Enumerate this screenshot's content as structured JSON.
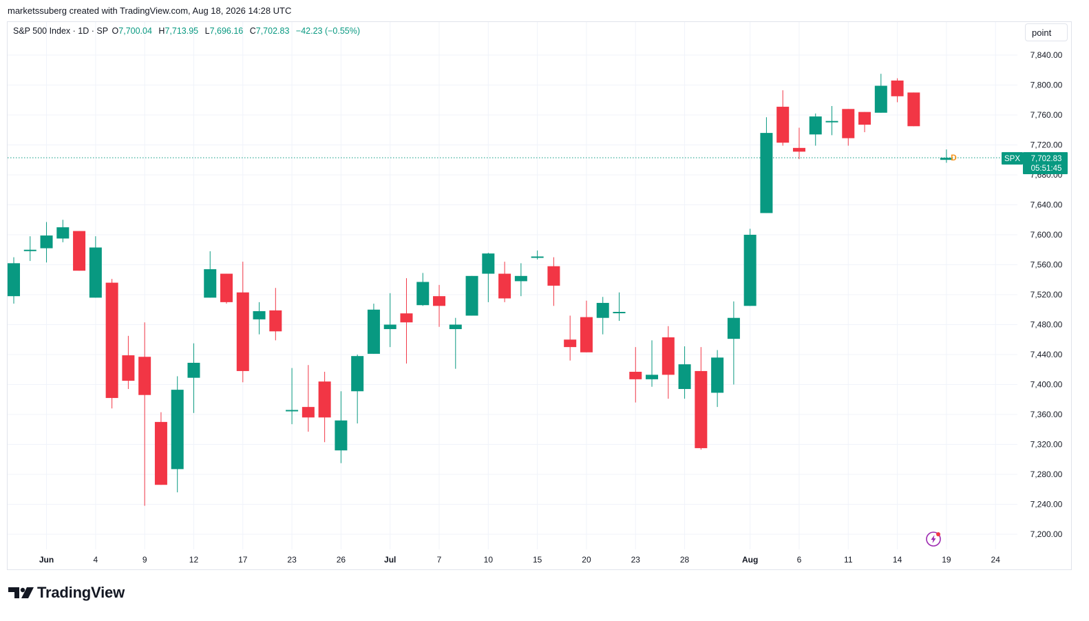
{
  "header": {
    "creator_line": "marketssuberg created with TradingView.com, Aug 18, 2026 14:28 UTC"
  },
  "legend": {
    "symbol": "S&P 500 Index · 1D · SP",
    "open_label": "O",
    "open": "7,700.04",
    "high_label": "H",
    "high": "7,713.95",
    "low_label": "L",
    "low": "7,696.16",
    "close_label": "C",
    "close": "7,702.83",
    "change": "−42.23 (−0.55%)"
  },
  "toolbar": {
    "unit_label": "point"
  },
  "price_badge": {
    "ticker": "SPX",
    "price": "7,702.83",
    "countdown": "05:51:45"
  },
  "dividend_marker": "D",
  "brand": {
    "name": "TradingView"
  },
  "colors": {
    "up": "#089981",
    "down": "#f23645",
    "grid": "#f0f3fa",
    "marker": "#f7931a",
    "text": "#131722"
  },
  "chart_data": {
    "type": "candlestick",
    "y_axis": {
      "min": 7200,
      "max": 7840,
      "ticks": [
        "7,200.00",
        "7,240.00",
        "7,280.00",
        "7,320.00",
        "7,360.00",
        "7,400.00",
        "7,440.00",
        "7,480.00",
        "7,520.00",
        "7,560.00",
        "7,600.00",
        "7,640.00",
        "7,680.00",
        "7,720.00",
        "7,760.00",
        "7,800.00",
        "7,840.00"
      ]
    },
    "x_axis": {
      "labels": [
        "Jun",
        "4",
        "9",
        "12",
        "17",
        "23",
        "26",
        "Jul",
        "7",
        "10",
        "15",
        "20",
        "23",
        "28",
        "Aug",
        "6",
        "11",
        "14",
        "19",
        "24"
      ]
    },
    "grid": true,
    "last_price_line": 7702.83,
    "candles": [
      {
        "o": 7518,
        "h": 7570,
        "l": 7508,
        "c": 7562
      },
      {
        "o": 7580,
        "h": 7598,
        "l": 7565,
        "c": 7580
      },
      {
        "o": 7582,
        "h": 7617,
        "l": 7563,
        "c": 7599
      },
      {
        "o": 7595,
        "h": 7620,
        "l": 7590,
        "c": 7610
      },
      {
        "o": 7605,
        "h": 7605,
        "l": 7552,
        "c": 7552
      },
      {
        "o": 7516,
        "h": 7598,
        "l": 7516,
        "c": 7583
      },
      {
        "o": 7536,
        "h": 7541,
        "l": 7368,
        "c": 7382
      },
      {
        "o": 7439,
        "h": 7465,
        "l": 7394,
        "c": 7405
      },
      {
        "o": 7437,
        "h": 7483,
        "l": 7238,
        "c": 7386
      },
      {
        "o": 7350,
        "h": 7363,
        "l": 7266,
        "c": 7266
      },
      {
        "o": 7287,
        "h": 7411,
        "l": 7256,
        "c": 7393
      },
      {
        "o": 7409,
        "h": 7455,
        "l": 7362,
        "c": 7429
      },
      {
        "o": 7516,
        "h": 7578,
        "l": 7516,
        "c": 7554
      },
      {
        "o": 7548,
        "h": 7548,
        "l": 7508,
        "c": 7510
      },
      {
        "o": 7523,
        "h": 7564,
        "l": 7403,
        "c": 7418
      },
      {
        "o": 7487,
        "h": 7510,
        "l": 7467,
        "c": 7498
      },
      {
        "o": 7499,
        "h": 7529,
        "l": 7459,
        "c": 7471
      },
      {
        "o": 7366,
        "h": 7422,
        "l": 7347,
        "c": 7366
      },
      {
        "o": 7370,
        "h": 7426,
        "l": 7337,
        "c": 7356
      },
      {
        "o": 7404,
        "h": 7417,
        "l": 7323,
        "c": 7356
      },
      {
        "o": 7312,
        "h": 7391,
        "l": 7295,
        "c": 7352
      },
      {
        "o": 7391,
        "h": 7440,
        "l": 7348,
        "c": 7438
      },
      {
        "o": 7441,
        "h": 7508,
        "l": 7441,
        "c": 7500
      },
      {
        "o": 7474,
        "h": 7522,
        "l": 7450,
        "c": 7480
      },
      {
        "o": 7495,
        "h": 7542,
        "l": 7428,
        "c": 7483
      },
      {
        "o": 7506,
        "h": 7549,
        "l": 7505,
        "c": 7537
      },
      {
        "o": 7518,
        "h": 7533,
        "l": 7477,
        "c": 7505
      },
      {
        "o": 7474,
        "h": 7489,
        "l": 7421,
        "c": 7480
      },
      {
        "o": 7492,
        "h": 7545,
        "l": 7492,
        "c": 7545
      },
      {
        "o": 7548,
        "h": 7576,
        "l": 7510,
        "c": 7575
      },
      {
        "o": 7548,
        "h": 7564,
        "l": 7510,
        "c": 7515
      },
      {
        "o": 7538,
        "h": 7562,
        "l": 7518,
        "c": 7545
      },
      {
        "o": 7571,
        "h": 7579,
        "l": 7567,
        "c": 7571
      },
      {
        "o": 7558,
        "h": 7570,
        "l": 7505,
        "c": 7532
      },
      {
        "o": 7460,
        "h": 7492,
        "l": 7432,
        "c": 7450
      },
      {
        "o": 7490,
        "h": 7512,
        "l": 7443,
        "c": 7443
      },
      {
        "o": 7489,
        "h": 7517,
        "l": 7467,
        "c": 7509
      },
      {
        "o": 7497,
        "h": 7523,
        "l": 7485,
        "c": 7497
      },
      {
        "o": 7417,
        "h": 7450,
        "l": 7376,
        "c": 7407
      },
      {
        "o": 7407,
        "h": 7459,
        "l": 7397,
        "c": 7413
      },
      {
        "o": 7463,
        "h": 7478,
        "l": 7381,
        "c": 7413
      },
      {
        "o": 7394,
        "h": 7451,
        "l": 7381,
        "c": 7427
      },
      {
        "o": 7418,
        "h": 7450,
        "l": 7313,
        "c": 7315
      },
      {
        "o": 7389,
        "h": 7446,
        "l": 7370,
        "c": 7436
      },
      {
        "o": 7461,
        "h": 7511,
        "l": 7400,
        "c": 7489
      },
      {
        "o": 7505,
        "h": 7608,
        "l": 7505,
        "c": 7600
      },
      {
        "o": 7629,
        "h": 7757,
        "l": 7629,
        "c": 7736
      },
      {
        "o": 7771,
        "h": 7793,
        "l": 7719,
        "c": 7723
      },
      {
        "o": 7716,
        "h": 7743,
        "l": 7701,
        "c": 7711
      },
      {
        "o": 7734,
        "h": 7762,
        "l": 7719,
        "c": 7758
      },
      {
        "o": 7752,
        "h": 7772,
        "l": 7733,
        "c": 7752
      },
      {
        "o": 7768,
        "h": 7768,
        "l": 7719,
        "c": 7729
      },
      {
        "o": 7764,
        "h": 7764,
        "l": 7737,
        "c": 7747
      },
      {
        "o": 7763,
        "h": 7815,
        "l": 7763,
        "c": 7799
      },
      {
        "o": 7806,
        "h": 7809,
        "l": 7777,
        "c": 7785
      },
      {
        "o": 7790,
        "h": 7790,
        "l": 7745,
        "c": 7745
      },
      null,
      {
        "o": 7700.04,
        "h": 7713.95,
        "l": 7696.16,
        "c": 7702.83
      }
    ]
  }
}
